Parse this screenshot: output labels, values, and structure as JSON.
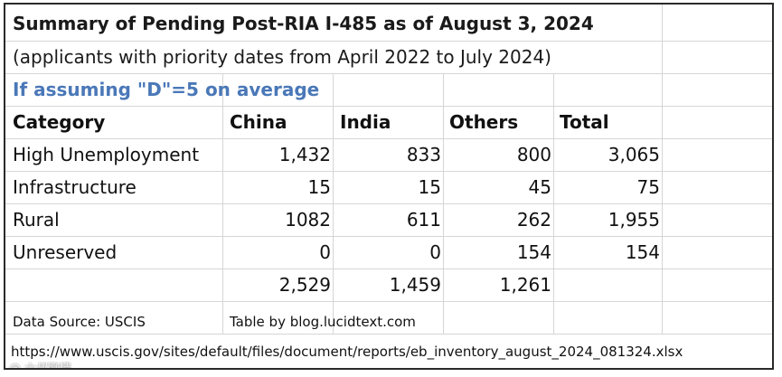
{
  "table": {
    "title": "Summary of Pending Post-RIA I-485 as of August 3, 2024",
    "subtitle": "(applicants with priority dates from April 2022 to July 2024)",
    "assumption": "If assuming \"D\"=5 on average",
    "headers": [
      "Category",
      "China",
      "India",
      "Others",
      "Total"
    ],
    "rows": [
      {
        "category": "High Unemployment",
        "china": "1,432",
        "india": "833",
        "others": "800",
        "total": "3,065"
      },
      {
        "category": "Infrastructure",
        "china": "15",
        "india": "15",
        "others": "45",
        "total": "75"
      },
      {
        "category": "Rural",
        "china": "1082",
        "india": "611",
        "others": "262",
        "total": "1,955"
      },
      {
        "category": "Unreserved",
        "china": "0",
        "india": "0",
        "others": "154",
        "total": "154"
      }
    ],
    "totals": {
      "china": "2,529",
      "india": "1,459",
      "others": "1,261"
    },
    "source": "Data Source: USCIS",
    "credit": "Table by blog.lucidtext.com",
    "url": "https://www.uscis.gov/sites/default/files/document/reports/eb_inventory_august_2024_081324.xlsx"
  },
  "watermark": "@ 六叔聊情"
}
